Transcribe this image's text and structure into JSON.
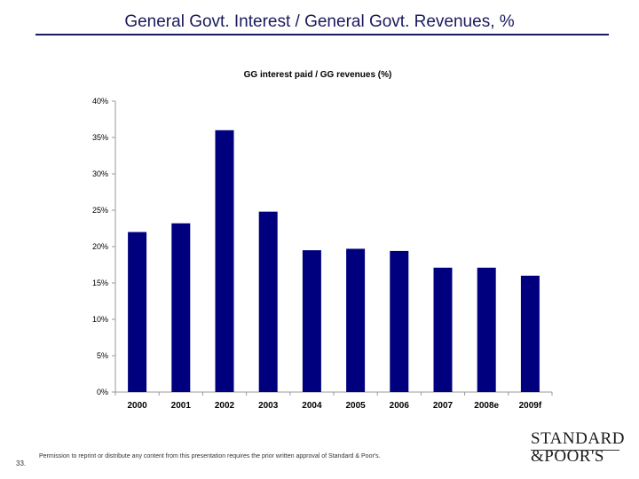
{
  "slide": {
    "title": "General Govt. Interest / General Govt. Revenues, %",
    "page_number": "33.",
    "footer_note": "Permission to reprint or distribute any content from this presentation requires the prior written approval of Standard & Poor's.",
    "logo_line1": "STANDARD",
    "logo_line2": "&POOR'S"
  },
  "colors": {
    "bar": "#00007f",
    "title": "#1a1a5e",
    "axis": "#999999"
  },
  "chart_data": {
    "type": "bar",
    "title": "GG interest paid / GG revenues (%)",
    "xlabel": "",
    "ylabel": "",
    "categories": [
      "2000",
      "2001",
      "2002",
      "2003",
      "2004",
      "2005",
      "2006",
      "2007",
      "2008e",
      "2009f"
    ],
    "values": [
      22,
      23.2,
      36,
      24.8,
      19.5,
      19.7,
      19.4,
      17.1,
      17.1,
      16
    ],
    "ylim": [
      0,
      40
    ],
    "yticks": [
      0,
      5,
      10,
      15,
      20,
      25,
      30,
      35,
      40
    ],
    "ytick_labels": [
      "0%",
      "5%",
      "10%",
      "15%",
      "20%",
      "25%",
      "30%",
      "35%",
      "40%"
    ],
    "grid": false,
    "legend": "none"
  }
}
